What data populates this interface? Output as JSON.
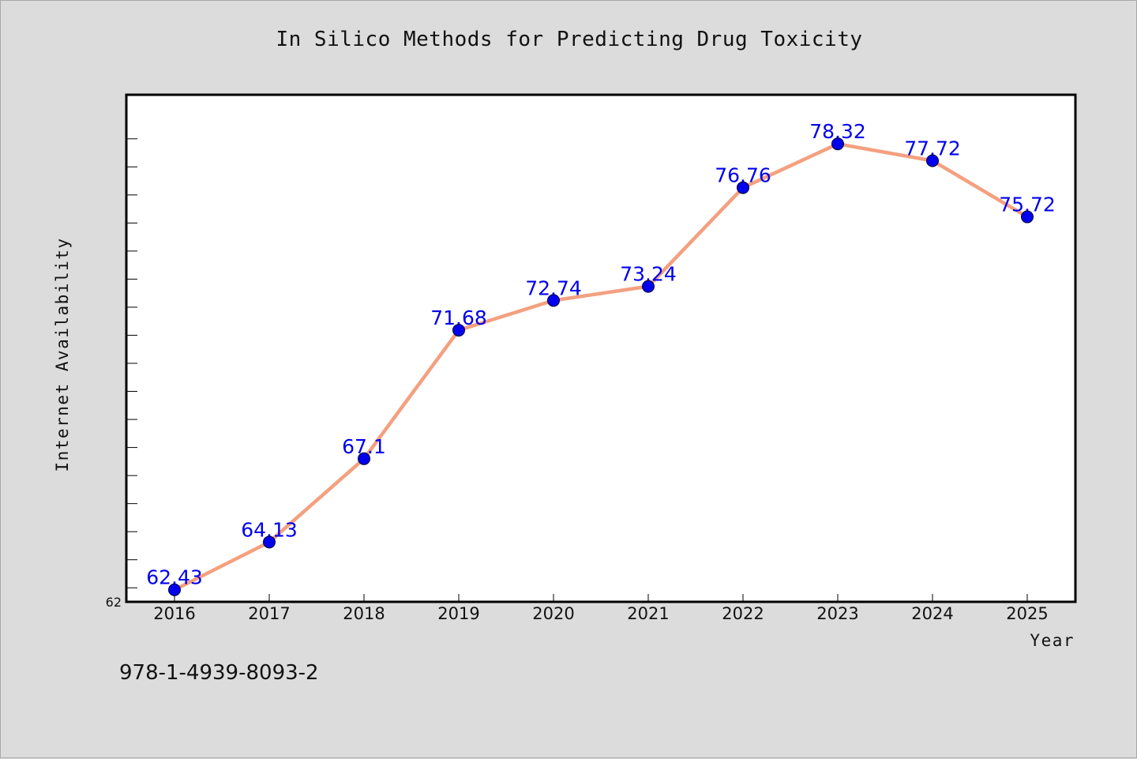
{
  "chart_data": {
    "type": "line",
    "title": "In Silico Methods for Predicting Drug Toxicity",
    "xlabel": "Year",
    "ylabel": "Internet Availability",
    "categories": [
      "2016",
      "2017",
      "2018",
      "2019",
      "2020",
      "2021",
      "2022",
      "2023",
      "2024",
      "2025"
    ],
    "series": [
      {
        "values": [
          62.43,
          64.13,
          67.1,
          71.68,
          72.74,
          73.24,
          76.76,
          78.32,
          77.72,
          75.72
        ],
        "labels": [
          "62.43",
          "64.13",
          "67.1",
          "71.68",
          "72.74",
          "73.24",
          "76.76",
          "78.32",
          "77.72",
          "75.72"
        ]
      }
    ],
    "ylim": [
      62,
      79
    ],
    "y_tick_labels": [
      "62"
    ],
    "grid": false,
    "legend": "none",
    "line_color": "#f4a07f",
    "marker_color": "#0000ee",
    "label_color": "#0000ee"
  },
  "footer": {
    "code": "978-1-4939-8093-2"
  }
}
